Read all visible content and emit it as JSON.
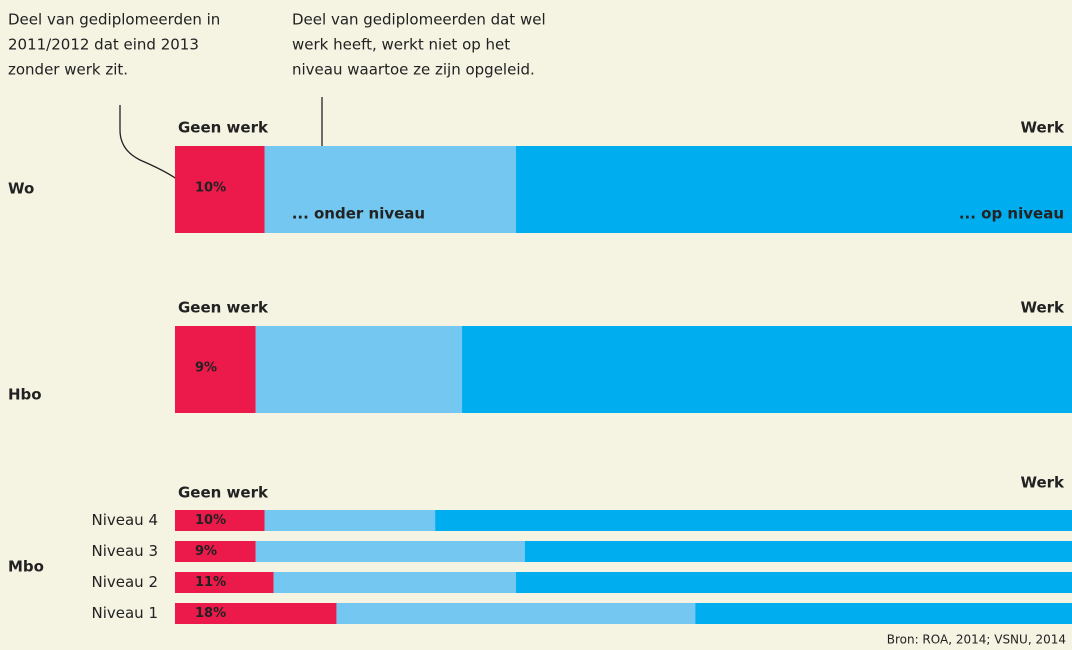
{
  "chart_data": [
    {
      "type": "bar",
      "stacked": true,
      "orientation": "horizontal",
      "xlim": [
        0,
        100
      ],
      "left_label": "Geen werk",
      "right_label": "Werk",
      "categories": [
        "Wo"
      ],
      "series": [
        {
          "color": "#ec1a4b",
          "values": [
            10
          ],
          "value_labels": [
            "10%"
          ]
        },
        {
          "name": "... onder niveau",
          "color": "#74c7f0",
          "values": [
            28
          ]
        },
        {
          "name": "... op niveau",
          "color": "#00aeef",
          "values": [
            62
          ]
        }
      ]
    },
    {
      "type": "bar",
      "stacked": true,
      "orientation": "horizontal",
      "xlim": [
        0,
        100
      ],
      "left_label": "Geen werk",
      "right_label": "Werk",
      "categories": [
        "Hbo"
      ],
      "series": [
        {
          "color": "#ec1a4b",
          "values": [
            9
          ],
          "value_labels": [
            "9%"
          ]
        },
        {
          "color": "#74c7f0",
          "values": [
            23
          ]
        },
        {
          "color": "#00aeef",
          "values": [
            68
          ]
        }
      ]
    },
    {
      "type": "bar",
      "stacked": true,
      "orientation": "horizontal",
      "xlim": [
        0,
        100
      ],
      "left_label": "Geen werk",
      "right_label": "Werk",
      "group": "Mbo",
      "categories": [
        "Niveau 4",
        "Niveau 3",
        "Niveau 2",
        "Niveau 1"
      ],
      "series": [
        {
          "color": "#ec1a4b",
          "values": [
            10,
            9,
            11,
            18
          ],
          "value_labels": [
            "10%",
            "9%",
            "11%",
            "18%"
          ]
        },
        {
          "color": "#74c7f0",
          "values": [
            19,
            30,
            27,
            40
          ]
        },
        {
          "color": "#00aeef",
          "values": [
            71,
            61,
            62,
            42
          ]
        }
      ]
    }
  ],
  "annotations": [
    [
      "Deel van gediplomeerden in",
      "2011/2012 dat eind 2013",
      "zonder werk zit."
    ],
    [
      "Deel van gediplomeerden dat wel",
      "werk heeft, werkt niet op het",
      "niveau waartoe ze zijn opgeleid."
    ]
  ],
  "source": "Bron: ROA, 2014; VSNU, 2014"
}
